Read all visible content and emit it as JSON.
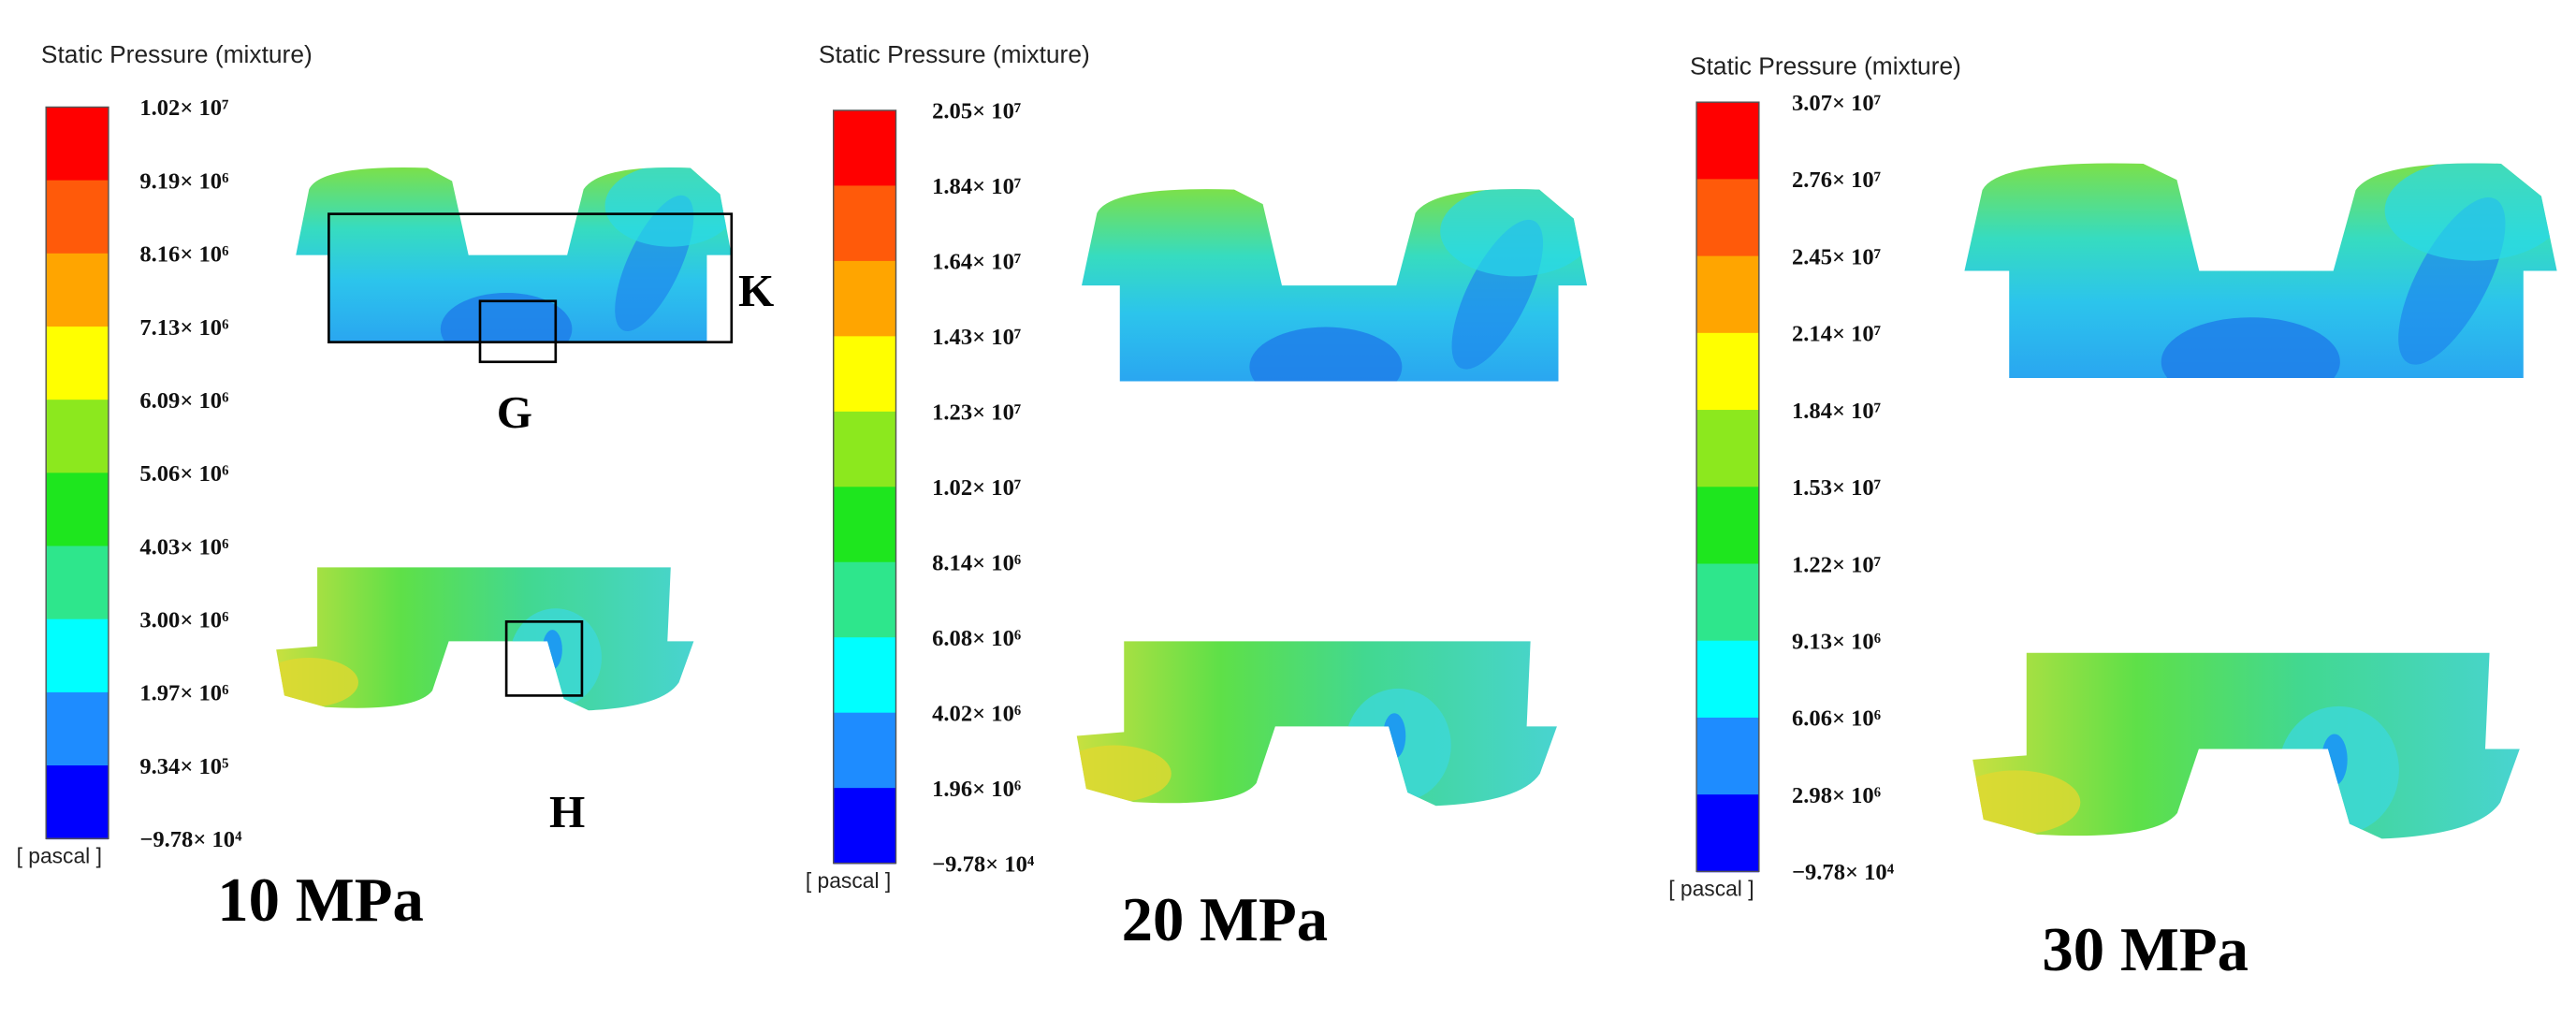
{
  "colorbar_colors": [
    "#ff0000",
    "#ff5a0a",
    "#ffa500",
    "#ffff00",
    "#8ce81e",
    "#1ee61e",
    "#2ee68c",
    "#00ffff",
    "#1e8cff",
    "#0000ff"
  ],
  "panels": [
    {
      "title": "Static Pressure (mixture)",
      "unit": "[ pascal ]",
      "label": "10 MPa",
      "ticks": [
        "1.02× 10⁷",
        "9.19× 10⁶",
        "8.16× 10⁶",
        "7.13× 10⁶",
        "6.09× 10⁶",
        "5.06× 10⁶",
        "4.03× 10⁶",
        "3.00× 10⁶",
        "1.97× 10⁶",
        "9.34× 10⁵",
        "−9.78× 10⁴"
      ],
      "annotations": [
        "K",
        "G",
        "H"
      ]
    },
    {
      "title": "Static Pressure (mixture)",
      "unit": "[ pascal ]",
      "label": "20 MPa",
      "ticks": [
        "2.05× 10⁷",
        "1.84× 10⁷",
        "1.64× 10⁷",
        "1.43× 10⁷",
        "1.23× 10⁷",
        "1.02× 10⁷",
        "8.14× 10⁶",
        "6.08× 10⁶",
        "4.02× 10⁶",
        "1.96× 10⁶",
        "−9.78× 10⁴"
      ]
    },
    {
      "title": "Static Pressure (mixture)",
      "unit": "[ pascal ]",
      "label": "30 MPa",
      "ticks": [
        "3.07× 10⁷",
        "2.76× 10⁷",
        "2.45× 10⁷",
        "2.14× 10⁷",
        "1.84× 10⁷",
        "1.53× 10⁷",
        "1.22× 10⁷",
        "9.13× 10⁶",
        "6.06× 10⁶",
        "2.98× 10⁶",
        "−9.78× 10⁴"
      ]
    }
  ]
}
